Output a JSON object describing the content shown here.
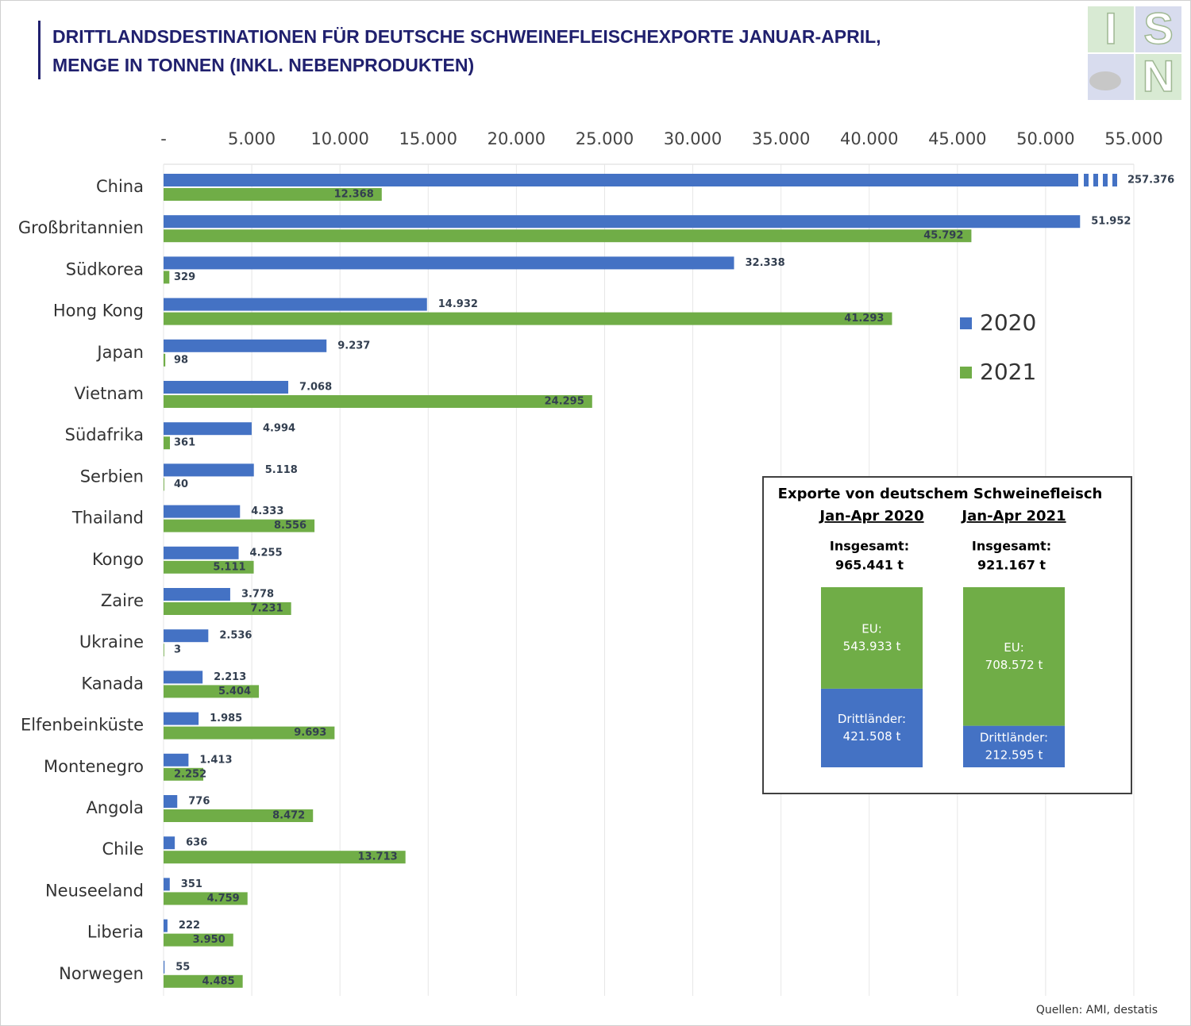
{
  "logo": [
    "I",
    "S",
    "N"
  ],
  "chart_data": [
    {
      "type": "bar",
      "orientation": "horizontal",
      "title": "DRITTLANDSDESTINATIONEN FÜR DEUTSCHE SCHWEINEFLEISCHEXPORTE JANUAR-APRIL, MENGE IN TONNEN (INKL. NEBENPRODUKTEN)",
      "categories": [
        "China",
        "Großbritannien",
        "Südkorea",
        "Hong Kong",
        "Japan",
        "Vietnam",
        "Südafrika",
        "Serbien",
        "Thailand",
        "Kongo",
        "Zaire",
        "Ukraine",
        "Kanada",
        "Elfenbeinküste",
        "Montenegro",
        "Angola",
        "Chile",
        "Neuseeland",
        "Liberia",
        "Norwegen"
      ],
      "series": [
        {
          "name": "2020",
          "color": "#4472c4",
          "values": [
            257376,
            51952,
            32338,
            14932,
            9237,
            7068,
            4994,
            5118,
            4333,
            4255,
            3778,
            2536,
            2213,
            1985,
            1413,
            776,
            636,
            351,
            222,
            55
          ],
          "value_labels": [
            "257.376",
            "51.952",
            "32.338",
            "14.932",
            "9.237",
            "7.068",
            "4.994",
            "5.118",
            "4.333",
            "4.255",
            "3.778",
            "2.536",
            "2.213",
            "1.985",
            "1.413",
            "776",
            "636",
            "351",
            "222",
            "55"
          ]
        },
        {
          "name": "2021",
          "color": "#70ad47",
          "values": [
            12368,
            45792,
            329,
            41293,
            98,
            24295,
            361,
            40,
            8556,
            5111,
            7231,
            3,
            5404,
            9693,
            2252,
            8472,
            13713,
            4759,
            3950,
            4485
          ],
          "value_labels": [
            "12.368",
            "45.792",
            "329",
            "41.293",
            "98",
            "24.295",
            "361",
            "40",
            "8.556",
            "5.111",
            "7.231",
            "3",
            "5.404",
            "9.693",
            "2.252",
            "8.472",
            "13.713",
            "4.759",
            "3.950",
            "4.485"
          ]
        }
      ],
      "xlim": [
        0,
        55000
      ],
      "xticks": [
        {
          "value": 0,
          "label": "-"
        },
        {
          "value": 5000,
          "label": "5.000"
        },
        {
          "value": 10000,
          "label": "10.000"
        },
        {
          "value": 15000,
          "label": "15.000"
        },
        {
          "value": 20000,
          "label": "20.000"
        },
        {
          "value": 25000,
          "label": "25.000"
        },
        {
          "value": 30000,
          "label": "30.000"
        },
        {
          "value": 35000,
          "label": "35.000"
        },
        {
          "value": 40000,
          "label": "40.000"
        },
        {
          "value": 45000,
          "label": "45.000"
        },
        {
          "value": 50000,
          "label": "50.000"
        },
        {
          "value": 55000,
          "label": "55.000"
        }
      ],
      "grid": true,
      "legend": "right",
      "source": "Quellen: AMI, destatis"
    },
    {
      "type": "stacked_bar",
      "title": "Exporte von deutschem Schweinefleisch",
      "categories": [
        "Jan-Apr 2020",
        "Jan-Apr 2021"
      ],
      "total_label": "Insgesamt:",
      "totals": [
        965441,
        921167
      ],
      "total_labels": [
        "965.441 t",
        "921.167 t"
      ],
      "series": [
        {
          "name": "Drittländer:",
          "color": "#4472c4",
          "values": [
            421508,
            212595
          ],
          "value_labels": [
            "421.508 t",
            "212.595 t"
          ]
        },
        {
          "name": "EU:",
          "color": "#70ad47",
          "values": [
            543933,
            708572
          ],
          "value_labels": [
            "543.933 t",
            "708.572 t"
          ]
        }
      ]
    }
  ]
}
